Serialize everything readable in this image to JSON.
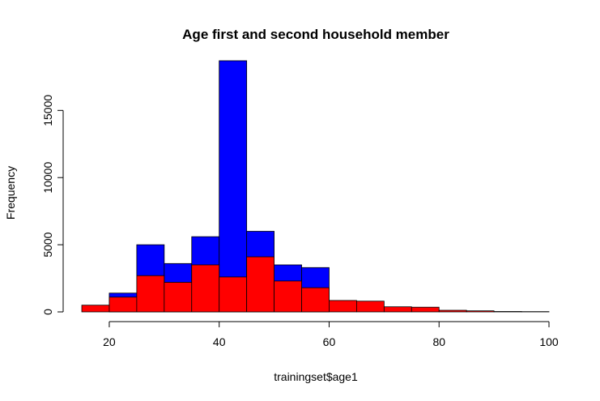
{
  "chart_data": {
    "type": "bar",
    "title": "Age first and second household member",
    "xlabel": "trainingset$age1",
    "ylabel": "Frequency",
    "xlim": [
      15,
      100
    ],
    "ylim": [
      0,
      19000
    ],
    "x_ticks": [
      20,
      40,
      60,
      80,
      100
    ],
    "y_ticks": [
      0,
      5000,
      10000,
      15000
    ],
    "bin_edges": [
      15,
      20,
      25,
      30,
      35,
      40,
      45,
      50,
      55,
      60,
      65,
      70,
      75,
      80,
      85,
      90,
      95,
      100
    ],
    "series": [
      {
        "color": "#0000ff",
        "values": [
          0,
          1400,
          5000,
          3600,
          5600,
          18700,
          6000,
          3500,
          3300,
          0,
          0,
          0,
          0,
          0,
          0,
          0,
          0
        ]
      },
      {
        "color": "#ff0000",
        "values": [
          500,
          1100,
          2700,
          2200,
          3500,
          2600,
          4100,
          2300,
          1800,
          850,
          800,
          380,
          350,
          120,
          80,
          30,
          20
        ]
      }
    ],
    "grid": false,
    "legend": "none"
  }
}
